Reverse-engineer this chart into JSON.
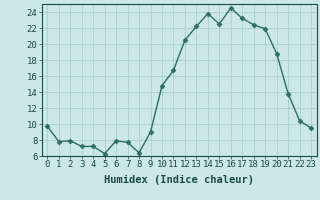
{
  "x": [
    0,
    1,
    2,
    3,
    4,
    5,
    6,
    7,
    8,
    9,
    10,
    11,
    12,
    13,
    14,
    15,
    16,
    17,
    18,
    19,
    20,
    21,
    22,
    23
  ],
  "y": [
    9.7,
    7.8,
    7.9,
    7.2,
    7.2,
    6.3,
    7.9,
    7.7,
    6.4,
    9.0,
    14.8,
    16.7,
    20.5,
    22.2,
    23.8,
    22.5,
    24.5,
    23.2,
    22.4,
    21.9,
    18.8,
    13.8,
    10.4,
    9.5
  ],
  "line_color": "#2d6e63",
  "marker": "D",
  "marker_size": 2.5,
  "bg_color": "#cce8e4",
  "grid_color": "#aacfcb",
  "xlabel": "Humidex (Indice chaleur)",
  "ylim": [
    6,
    25
  ],
  "xlim": [
    -0.5,
    23.5
  ],
  "yticks": [
    6,
    8,
    10,
    12,
    14,
    16,
    18,
    20,
    22,
    24
  ],
  "xticks": [
    0,
    1,
    2,
    3,
    4,
    5,
    6,
    7,
    8,
    9,
    10,
    11,
    12,
    13,
    14,
    15,
    16,
    17,
    18,
    19,
    20,
    21,
    22,
    23
  ],
  "xlabel_fontsize": 7.5,
  "tick_fontsize": 6.5,
  "line_width": 1.0,
  "text_color": "#1a4a44"
}
